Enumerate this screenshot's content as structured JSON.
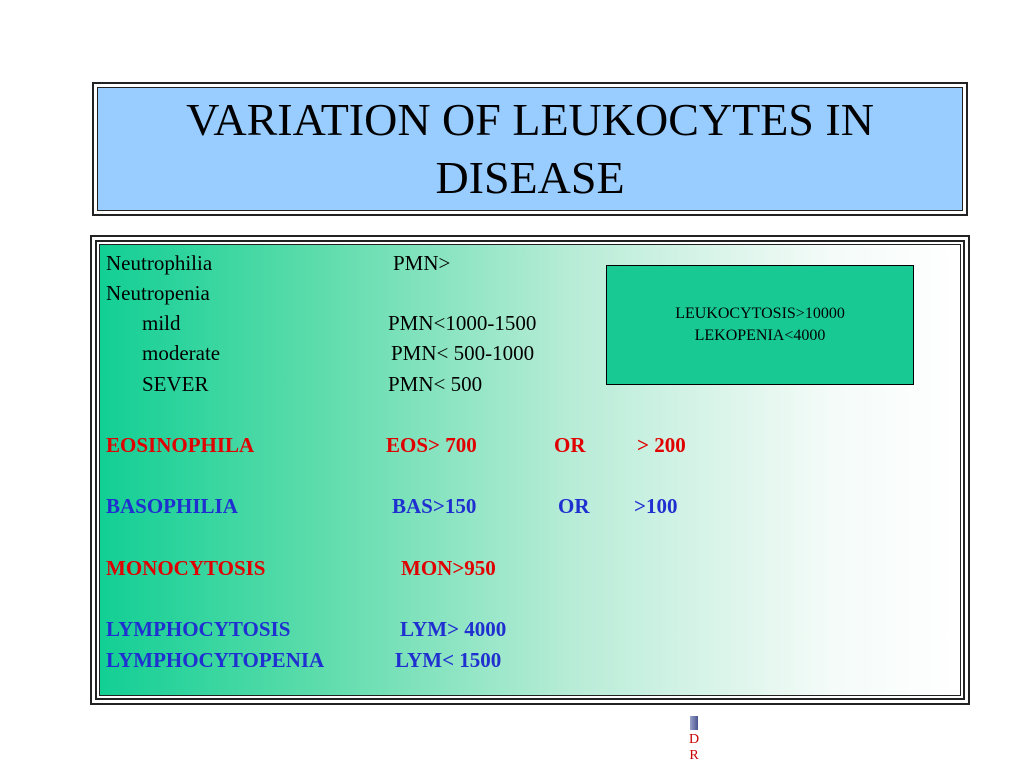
{
  "title": "VARIATION OF LEUKOCYTES IN DISEASE",
  "colors": {
    "red": "#e00000",
    "blue": "#1f2fd0",
    "black": "#000000",
    "title_bg": "#99ccff",
    "box_bg": "#19c993"
  },
  "rows": [
    {
      "label": "Neutrophilia",
      "value": "PMN>",
      "or": "",
      "alt": ""
    },
    {
      "label": "Neutropenia",
      "value": "",
      "or": "",
      "alt": ""
    },
    {
      "label": "mild",
      "value": "PMN<1000-1500",
      "or": "",
      "alt": ""
    },
    {
      "label": "moderate",
      "value": "PMN< 500-1000",
      "or": "",
      "alt": ""
    },
    {
      "label": "SEVER",
      "value": "PMN< 500",
      "or": "",
      "alt": ""
    },
    {
      "label": "EOSINOPHILA",
      "value": "EOS> 700",
      "or": "OR",
      "alt": "> 200"
    },
    {
      "label": "BASOPHILIA",
      "value": "BAS>150",
      "or": "OR",
      "alt": ">100"
    },
    {
      "label": "MONOCYTOSIS",
      "value": "MON>950",
      "or": "",
      "alt": ""
    },
    {
      "label": "LYMPHOCYTOSIS",
      "value": "LYM> 4000",
      "or": "",
      "alt": ""
    },
    {
      "label": "LYMPHOCYTOPENIA",
      "value": "LYM< 1500",
      "or": "",
      "alt": ""
    }
  ],
  "info_box": {
    "line1": "LEUKOCYTOSIS>10000",
    "line2": "LEKOPENIA<4000"
  },
  "footer": {
    "letter1": "D",
    "letter2": "R"
  }
}
